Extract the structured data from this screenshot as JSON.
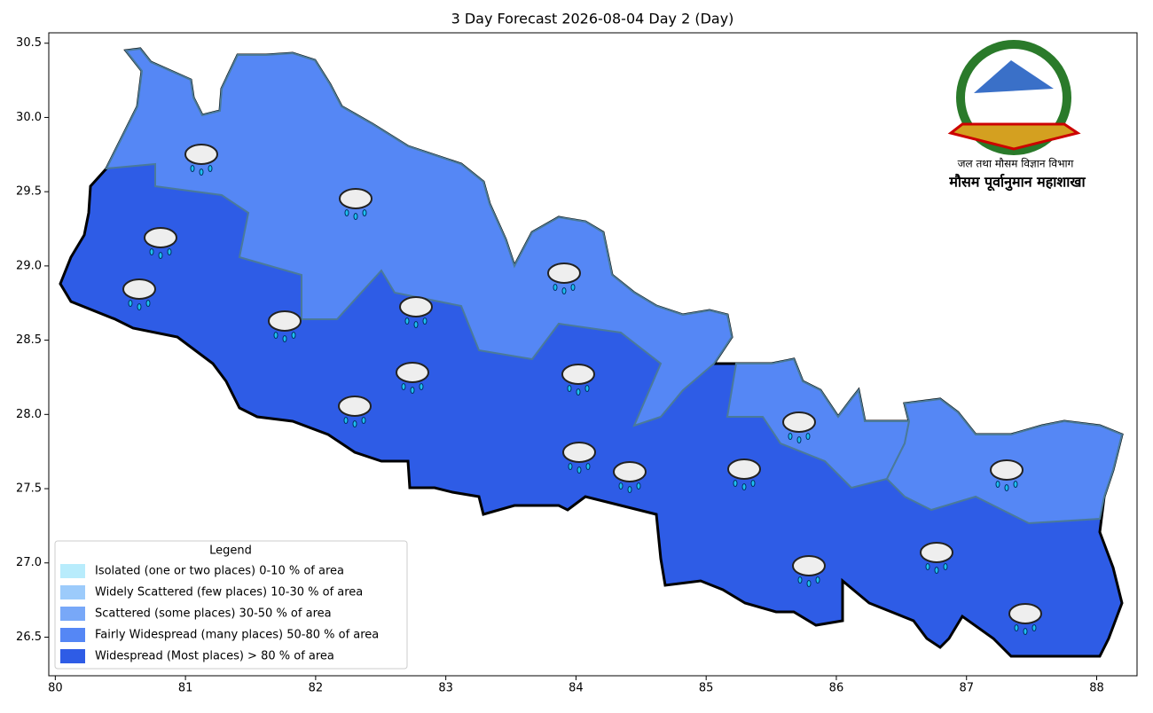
{
  "chart_data": {
    "type": "map",
    "title": "3 Day Forecast 2026-08-04 Day 2 (Day)",
    "xlim": [
      79.95,
      88.31
    ],
    "xticks": [
      80,
      81,
      82,
      83,
      84,
      85,
      86,
      87,
      88
    ],
    "ylim": [
      26.24,
      30.57
    ],
    "yticks": [
      26.5,
      {
        "value": 27,
        "label": "27.0"
      },
      27.5,
      {
        "value": 28,
        "label": "28.0"
      },
      28.5,
      {
        "value": 29,
        "label": "29.0"
      },
      29.5,
      {
        "value": 30,
        "label": "30.0"
      },
      30.5
    ],
    "legend": {
      "title": "Legend",
      "entries": [
        {
          "name": "Isolated (one or two places)  0-10 % of area",
          "color": "#b8ecfc"
        },
        {
          "name": "Widely Scattered (few places)  10-30 % of area",
          "color": "#9ccbfb"
        },
        {
          "name": "Scattered (some places)  30-50 % of area",
          "color": "#78a8f8"
        },
        {
          "name": "Fairly Widespread (many places)  50-80 % of area",
          "color": "#5587f5"
        },
        {
          "name": "Widespread (Most places) > 80 % of area",
          "color": "#2e5ce6"
        }
      ]
    },
    "logo_texts": [
      "जल तथा मौसम विज्ञान विभाग",
      "मौसम पूर्वानुमान महाशाखा"
    ]
  }
}
